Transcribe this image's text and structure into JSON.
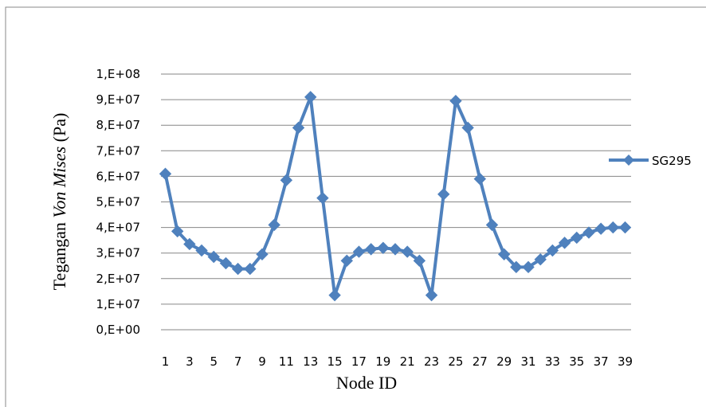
{
  "chart_data": {
    "type": "line",
    "title": "",
    "xlabel": "Node ID",
    "ylabel": {
      "prefix": "Tegangan ",
      "italic": "Von Mises",
      "suffix": " (Pa)"
    },
    "ylim": [
      0,
      100000000
    ],
    "yticks": [
      {
        "value": 0,
        "label": "0,E+00"
      },
      {
        "value": 10000000,
        "label": "1,E+07"
      },
      {
        "value": 20000000,
        "label": "2,E+07"
      },
      {
        "value": 30000000,
        "label": "3,E+07"
      },
      {
        "value": 40000000,
        "label": "4,E+07"
      },
      {
        "value": 50000000,
        "label": "5,E+07"
      },
      {
        "value": 60000000,
        "label": "6,E+07"
      },
      {
        "value": 70000000,
        "label": "7,E+07"
      },
      {
        "value": 80000000,
        "label": "8,E+07"
      },
      {
        "value": 90000000,
        "label": "9,E+07"
      },
      {
        "value": 100000000,
        "label": "1,E+08"
      }
    ],
    "x": [
      1,
      2,
      3,
      4,
      5,
      6,
      7,
      8,
      9,
      10,
      11,
      12,
      13,
      14,
      15,
      16,
      17,
      18,
      19,
      20,
      21,
      22,
      23,
      24,
      25,
      26,
      27,
      28,
      29,
      30,
      31,
      32,
      33,
      34,
      35,
      36,
      37,
      38,
      39
    ],
    "xtick_labels": [
      "1",
      "3",
      "5",
      "7",
      "9",
      "11",
      "13",
      "15",
      "17",
      "19",
      "21",
      "23",
      "25",
      "27",
      "29",
      "31",
      "33",
      "35",
      "37",
      "39"
    ],
    "grid": true,
    "legend": "right",
    "series": [
      {
        "name": "SG295",
        "color": "#4f81bd",
        "marker": "diamond",
        "values": [
          61000000,
          38500000,
          33500000,
          31000000,
          28500000,
          26000000,
          23800000,
          23800000,
          29500000,
          41000000,
          58500000,
          79000000,
          91000000,
          51500000,
          13500000,
          27000000,
          30500000,
          31500000,
          32000000,
          31500000,
          30500000,
          27000000,
          13500000,
          53000000,
          89500000,
          79000000,
          59000000,
          41000000,
          29500000,
          24500000,
          24500000,
          27500000,
          31000000,
          34000000,
          36000000,
          38000000,
          39500000,
          40000000,
          40000000
        ]
      }
    ]
  }
}
